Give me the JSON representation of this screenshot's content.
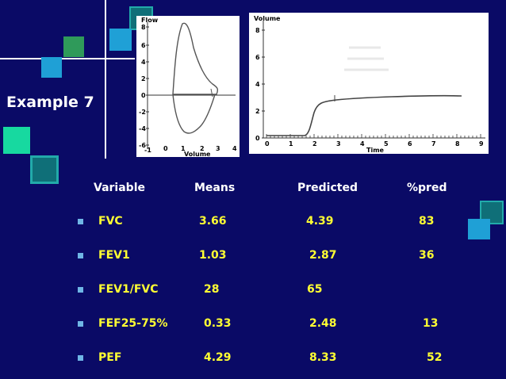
{
  "slide": {
    "title": "Example 7",
    "accent_color": "#ffff33",
    "background_color": "#0a0a66"
  },
  "flow_volume_chart": {
    "y_axis_label": "Flow",
    "x_axis_label": "Volume",
    "y_ticks": [
      "8",
      "6",
      "4",
      "2",
      "0",
      "-2",
      "-4",
      "-6"
    ],
    "x_ticks": [
      "-1",
      "0",
      "1",
      "2",
      "3",
      "4"
    ]
  },
  "volume_time_chart": {
    "y_axis_label": "Volume",
    "x_axis_label": "Time",
    "y_ticks": [
      "8",
      "6",
      "4",
      "2",
      "0"
    ],
    "x_ticks": [
      "0",
      "1",
      "2",
      "3",
      "4",
      "5",
      "6",
      "7",
      "8",
      "9"
    ]
  },
  "table": {
    "headers": [
      "Variable",
      "Means",
      "Predicted",
      "%pred"
    ],
    "rows": [
      {
        "variable": "FVC",
        "means": "3.66",
        "predicted": "4.39",
        "pred_pct": "83"
      },
      {
        "variable": "FEV1",
        "means": "1.03",
        "predicted": "2.87",
        "pred_pct": "36"
      },
      {
        "variable": "FEV1/FVC",
        "means": "28",
        "predicted": "65",
        "pred_pct": ""
      },
      {
        "variable": "FEF25-75%",
        "means": "0.33",
        "predicted": "2.48",
        "pred_pct": "13"
      },
      {
        "variable": "PEF",
        "means": "4.29",
        "predicted": "8.33",
        "pred_pct": "52"
      }
    ]
  }
}
